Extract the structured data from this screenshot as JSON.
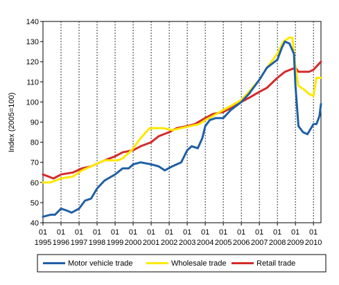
{
  "chart_data": {
    "type": "line",
    "title": "",
    "xlabel": "",
    "ylabel": "Index (2005=100)",
    "ylim": [
      40,
      140
    ],
    "yticks": [
      40,
      50,
      60,
      70,
      80,
      90,
      100,
      110,
      120,
      130,
      140
    ],
    "xlim": [
      "1995-01",
      "2010-06"
    ],
    "x_month_labels": [
      "01",
      "01",
      "01",
      "01",
      "01",
      "01",
      "01",
      "01",
      "01",
      "01",
      "01",
      "01",
      "01",
      "01",
      "01",
      "01"
    ],
    "x_year_labels": [
      "1995",
      "1996",
      "1997",
      "1998",
      "1999",
      "2000",
      "2001",
      "2002",
      "2003",
      "2004",
      "2005",
      "2006",
      "2007",
      "2008",
      "2009",
      "2010"
    ],
    "grid": "vertical dashed at each year",
    "legend_position": "bottom",
    "colors": {
      "motor": "#1f5fa6",
      "wholesale": "#ffe800",
      "retail": "#d42a2a"
    },
    "series": [
      {
        "name": "Motor vehicle trade",
        "points": [
          [
            "1995-01",
            43
          ],
          [
            "1995-06",
            44
          ],
          [
            "1995-09",
            44
          ],
          [
            "1996-01",
            47
          ],
          [
            "1996-05",
            46
          ],
          [
            "1996-08",
            45
          ],
          [
            "1997-01",
            47
          ],
          [
            "1997-05",
            51
          ],
          [
            "1997-09",
            52
          ],
          [
            "1998-01",
            57
          ],
          [
            "1998-06",
            61
          ],
          [
            "1999-01",
            64
          ],
          [
            "1999-06",
            67
          ],
          [
            "1999-10",
            67
          ],
          [
            "2000-01",
            69
          ],
          [
            "2000-06",
            70
          ],
          [
            "2001-01",
            69
          ],
          [
            "2001-06",
            68
          ],
          [
            "2001-10",
            66
          ],
          [
            "2002-03",
            68
          ],
          [
            "2002-09",
            70
          ],
          [
            "2003-01",
            76
          ],
          [
            "2003-04",
            78
          ],
          [
            "2003-08",
            77
          ],
          [
            "2003-11",
            82
          ],
          [
            "2004-01",
            88
          ],
          [
            "2004-04",
            91
          ],
          [
            "2004-08",
            92
          ],
          [
            "2005-01",
            92
          ],
          [
            "2005-06",
            96
          ],
          [
            "2006-01",
            100
          ],
          [
            "2006-06",
            104
          ],
          [
            "2007-01",
            111
          ],
          [
            "2007-06",
            117
          ],
          [
            "2008-01",
            121
          ],
          [
            "2008-04",
            127
          ],
          [
            "2008-06",
            130
          ],
          [
            "2008-09",
            129
          ],
          [
            "2008-12",
            124
          ],
          [
            "2009-01",
            108
          ],
          [
            "2009-03",
            88
          ],
          [
            "2009-06",
            85
          ],
          [
            "2009-09",
            84
          ],
          [
            "2010-01",
            89
          ],
          [
            "2010-03",
            89
          ],
          [
            "2010-05",
            93
          ],
          [
            "2010-06",
            99
          ]
        ]
      },
      {
        "name": "Wholesale trade",
        "points": [
          [
            "1995-01",
            60
          ],
          [
            "1995-06",
            60
          ],
          [
            "1996-01",
            62
          ],
          [
            "1996-09",
            63
          ],
          [
            "1997-03",
            66
          ],
          [
            "1997-09",
            68
          ],
          [
            "1998-06",
            71
          ],
          [
            "1998-12",
            71
          ],
          [
            "1999-03",
            71
          ],
          [
            "1999-06",
            72
          ],
          [
            "1999-12",
            76
          ],
          [
            "2000-06",
            82
          ],
          [
            "2000-12",
            87
          ],
          [
            "2001-03",
            87
          ],
          [
            "2001-09",
            87
          ],
          [
            "2002-03",
            86
          ],
          [
            "2002-09",
            87
          ],
          [
            "2003-03",
            88
          ],
          [
            "2003-09",
            89
          ],
          [
            "2004-01",
            91
          ],
          [
            "2004-06",
            93
          ],
          [
            "2005-01",
            96
          ],
          [
            "2005-06",
            98
          ],
          [
            "2006-01",
            101
          ],
          [
            "2006-06",
            105
          ],
          [
            "2007-01",
            111
          ],
          [
            "2007-06",
            117
          ],
          [
            "2008-01",
            124
          ],
          [
            "2008-05",
            130
          ],
          [
            "2008-09",
            132
          ],
          [
            "2008-11",
            132
          ],
          [
            "2009-01",
            117
          ],
          [
            "2009-03",
            108
          ],
          [
            "2009-07",
            106
          ],
          [
            "2009-10",
            104
          ],
          [
            "2010-01",
            103
          ],
          [
            "2010-03",
            112
          ],
          [
            "2010-06",
            112
          ]
        ]
      },
      {
        "name": "Retail trade",
        "points": [
          [
            "1995-01",
            64
          ],
          [
            "1995-08",
            62
          ],
          [
            "1996-01",
            64
          ],
          [
            "1996-09",
            65
          ],
          [
            "1997-03",
            67
          ],
          [
            "1997-09",
            68
          ],
          [
            "1998-06",
            71
          ],
          [
            "1999-01",
            73
          ],
          [
            "1999-06",
            75
          ],
          [
            "2000-01",
            76
          ],
          [
            "2000-06",
            78
          ],
          [
            "2001-01",
            80
          ],
          [
            "2001-06",
            83
          ],
          [
            "2002-01",
            85
          ],
          [
            "2002-06",
            87
          ],
          [
            "2003-01",
            88
          ],
          [
            "2003-06",
            89
          ],
          [
            "2004-01",
            92
          ],
          [
            "2004-06",
            94
          ],
          [
            "2005-01",
            95
          ],
          [
            "2005-06",
            97
          ],
          [
            "2006-01",
            100
          ],
          [
            "2006-06",
            102
          ],
          [
            "2007-01",
            105
          ],
          [
            "2007-06",
            107
          ],
          [
            "2008-01",
            112
          ],
          [
            "2008-06",
            115
          ],
          [
            "2009-01",
            117
          ],
          [
            "2009-03",
            115
          ],
          [
            "2009-06",
            115
          ],
          [
            "2009-10",
            115
          ],
          [
            "2010-01",
            116
          ],
          [
            "2010-06",
            120
          ]
        ]
      }
    ]
  }
}
